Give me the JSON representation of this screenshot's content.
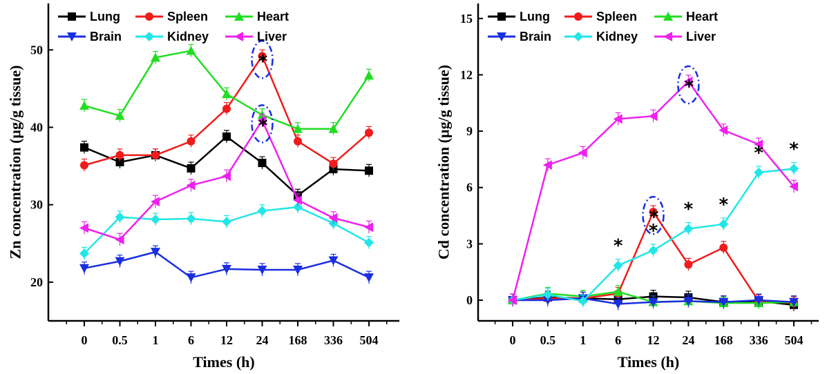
{
  "chart_data": [
    {
      "type": "line",
      "categories": [
        "0",
        "0.5",
        "1",
        "6",
        "12",
        "24",
        "168",
        "336",
        "504"
      ],
      "xlabel": "Times (h)",
      "ylabel": "Zn concentration (µg/g tissue)",
      "ylim": [
        15,
        56
      ],
      "yticks": [
        "20",
        "30",
        "40",
        "50"
      ],
      "legend_position": "top",
      "series": [
        {
          "name": "Lung",
          "color": "#000000",
          "marker": "square",
          "values": [
            37.4,
            35.5,
            36.4,
            34.7,
            38.8,
            35.4,
            31.2,
            34.6,
            34.4
          ]
        },
        {
          "name": "Spleen",
          "color": "#ee1c1c",
          "marker": "circle",
          "values": [
            35.1,
            36.4,
            36.4,
            38.2,
            42.4,
            49.2,
            38.2,
            35.3,
            39.3
          ]
        },
        {
          "name": "Heart",
          "color": "#22dd22",
          "marker": "triangle-up",
          "values": [
            42.8,
            41.5,
            49.0,
            49.9,
            44.3,
            41.6,
            39.8,
            39.8,
            46.7
          ]
        },
        {
          "name": "Brain",
          "color": "#1a2ee0",
          "marker": "triangle-down",
          "values": [
            21.8,
            22.7,
            23.9,
            20.6,
            21.7,
            21.6,
            21.6,
            22.8,
            20.6
          ]
        },
        {
          "name": "Kidney",
          "color": "#22e6e6",
          "marker": "diamond",
          "values": [
            23.7,
            28.4,
            28.1,
            28.2,
            27.8,
            29.2,
            29.7,
            27.6,
            25.1
          ]
        },
        {
          "name": "Liver",
          "color": "#ee22ee",
          "marker": "triangle-left",
          "values": [
            27.0,
            25.5,
            30.4,
            32.5,
            33.7,
            40.9,
            30.6,
            28.3,
            27.1
          ]
        }
      ],
      "annotations": [
        {
          "text": "*",
          "x": "24",
          "y": 49.2,
          "circled": true
        },
        {
          "text": "*",
          "x": "24",
          "y": 40.9,
          "circled": true
        }
      ]
    },
    {
      "type": "line",
      "categories": [
        "0",
        "0.5",
        "1",
        "6",
        "12",
        "24",
        "168",
        "336",
        "504"
      ],
      "xlabel": "Times (h)",
      "ylabel": "Cd concentration (µg/g tissue)",
      "ylim": [
        -1.1,
        15.8
      ],
      "yticks": [
        "0",
        "3",
        "6",
        "9",
        "12",
        "15"
      ],
      "legend_position": "top",
      "series": [
        {
          "name": "Lung",
          "color": "#000000",
          "marker": "square",
          "values": [
            0.0,
            0.15,
            0.1,
            0.05,
            0.2,
            0.15,
            -0.1,
            -0.05,
            -0.25
          ]
        },
        {
          "name": "Spleen",
          "color": "#ee1c1c",
          "marker": "circle",
          "values": [
            0.0,
            0.1,
            0.1,
            0.35,
            4.7,
            1.9,
            2.8,
            -0.05,
            -0.15
          ]
        },
        {
          "name": "Heart",
          "color": "#22dd22",
          "marker": "triangle-up",
          "values": [
            0.0,
            0.35,
            0.2,
            0.45,
            -0.1,
            -0.05,
            -0.15,
            -0.15,
            -0.1
          ]
        },
        {
          "name": "Brain",
          "color": "#1a2ee0",
          "marker": "triangle-down",
          "values": [
            0.0,
            0.0,
            0.1,
            -0.2,
            -0.1,
            -0.05,
            -0.1,
            0.0,
            -0.1
          ]
        },
        {
          "name": "Kidney",
          "color": "#22e6e6",
          "marker": "diamond",
          "values": [
            0.0,
            0.3,
            -0.05,
            1.85,
            2.65,
            3.8,
            4.05,
            6.8,
            7.0
          ]
        },
        {
          "name": "Liver",
          "color": "#ee22ee",
          "marker": "triangle-left",
          "values": [
            0.0,
            7.2,
            7.85,
            9.65,
            9.8,
            11.65,
            9.05,
            8.3,
            6.05
          ]
        }
      ],
      "annotations": [
        {
          "text": "*",
          "x": "6",
          "y": 1.85,
          "circled": false
        },
        {
          "text": "*",
          "x": "12",
          "y": 4.7,
          "circled": true
        },
        {
          "text": "*",
          "x": "12",
          "y": 2.65,
          "circled": false
        },
        {
          "text": "*",
          "x": "24",
          "y": 11.65,
          "circled": true
        },
        {
          "text": "*",
          "x": "24",
          "y": 3.8,
          "circled": false
        },
        {
          "text": "*",
          "x": "168",
          "y": 4.05,
          "circled": false
        },
        {
          "text": "*",
          "x": "336",
          "y": 6.8,
          "circled": false
        },
        {
          "text": "*",
          "x": "504",
          "y": 7.0,
          "circled": false
        }
      ]
    }
  ]
}
